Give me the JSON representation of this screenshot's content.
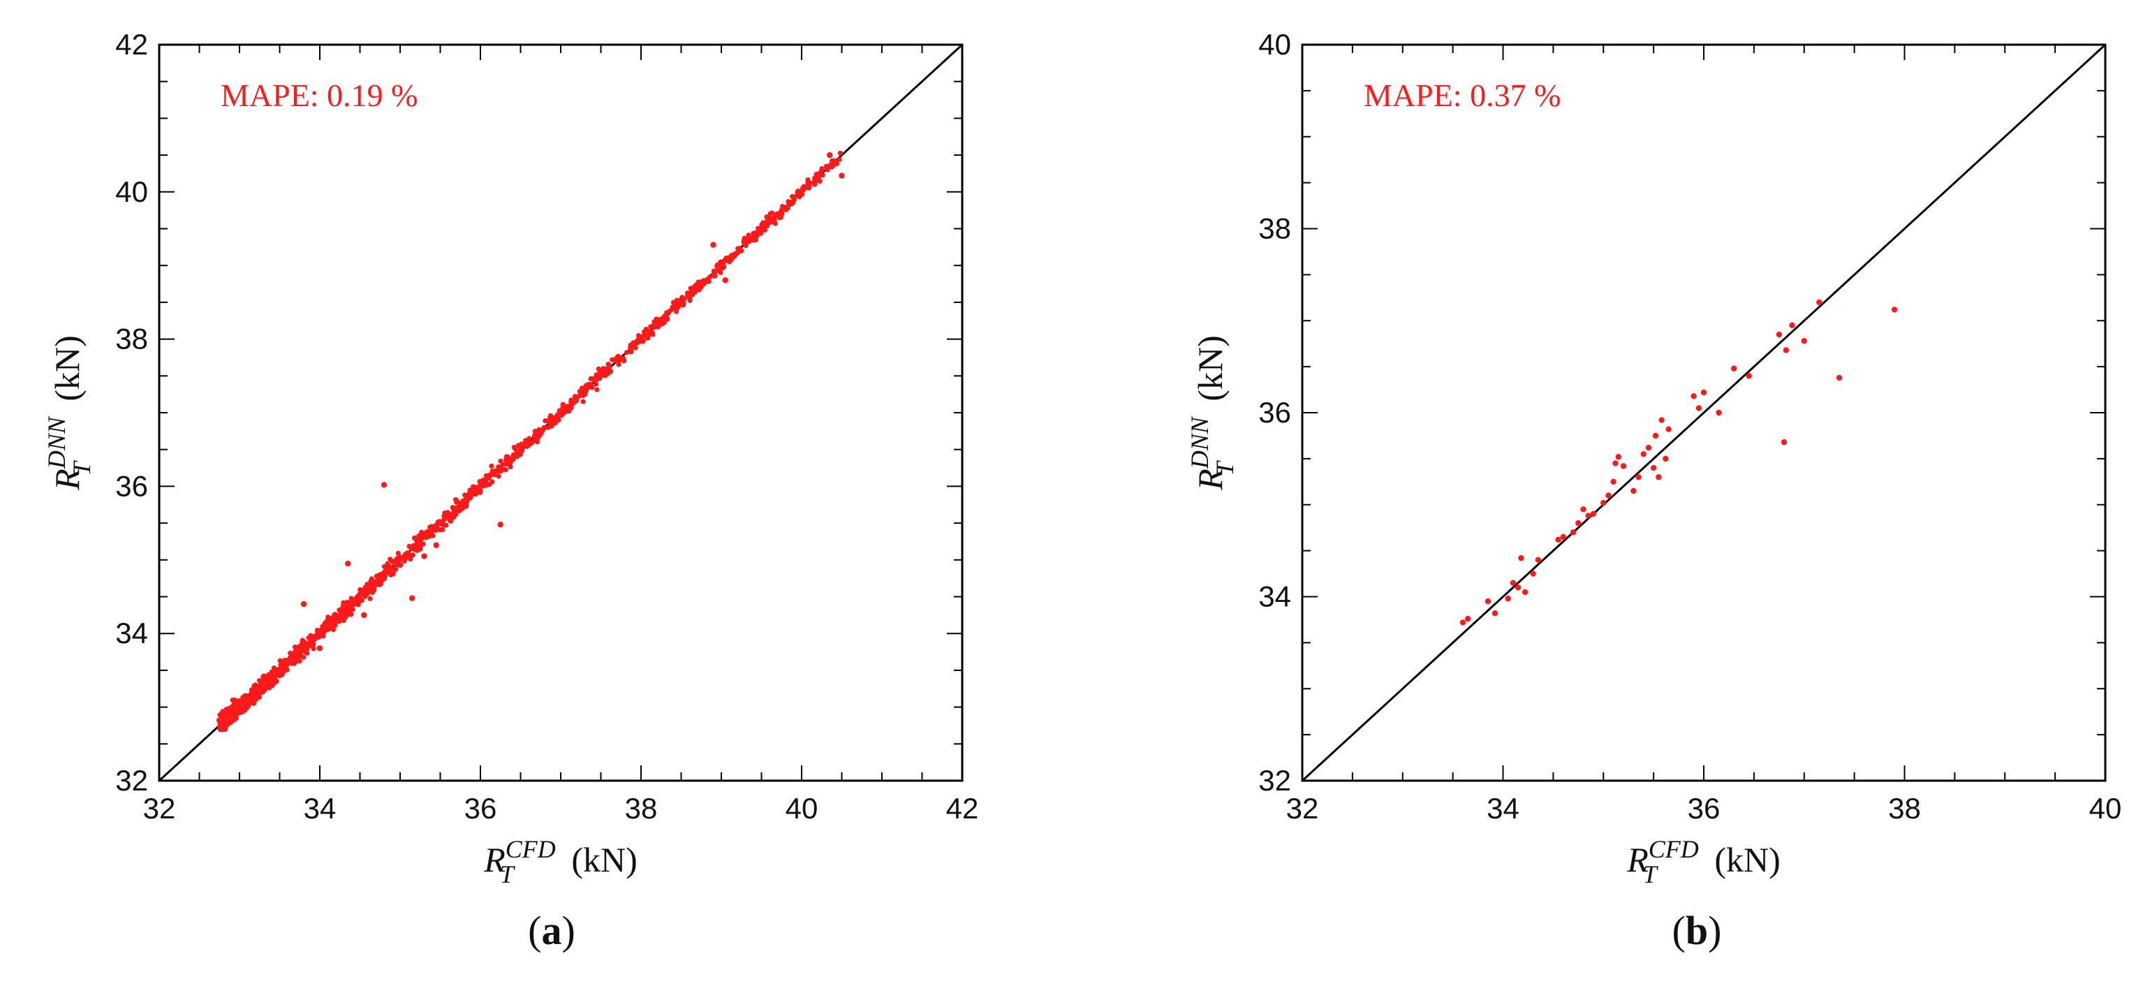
{
  "colors": {
    "points": "#ff1a1a",
    "annotation": "#ff1a1a",
    "axes": "#000000",
    "reference_line": "#000000"
  },
  "chart_data": [
    {
      "type": "scatter",
      "panel_label": "a",
      "annotation": "MAPE: 0.19 %",
      "xlabel": {
        "base": "R",
        "sub": "T",
        "sup": "CFD",
        "unit": "(kN)"
      },
      "ylabel": {
        "base": "R",
        "sub": "T",
        "sup": "DNN",
        "unit": "(kN)"
      },
      "xlim": [
        32,
        42
      ],
      "ylim": [
        32,
        42
      ],
      "xticks": [
        "32",
        "34",
        "36",
        "38",
        "40",
        "42"
      ],
      "yticks": [
        "32",
        "34",
        "36",
        "38",
        "40",
        "42"
      ],
      "grid": false,
      "reference_line": [
        [
          32,
          32
        ],
        [
          42,
          42
        ]
      ],
      "points_note": "dense cloud of ~1500 points along y=x from about 32.8 to 40.5",
      "x_range": [
        32.78,
        40.5
      ],
      "spread": 0.09,
      "points": [
        [
          34.8,
          36.02
        ],
        [
          36.25,
          35.48
        ],
        [
          35.15,
          34.48
        ],
        [
          40.35,
          40.5
        ],
        [
          40.5,
          40.22
        ],
        [
          40.0,
          39.97
        ],
        [
          39.75,
          39.7
        ],
        [
          39.4,
          39.35
        ],
        [
          39.05,
          38.8
        ],
        [
          38.9,
          39.28
        ],
        [
          38.45,
          38.5
        ],
        [
          37.35,
          37.38
        ],
        [
          35.3,
          35.05
        ],
        [
          34.35,
          34.95
        ],
        [
          33.8,
          34.4
        ],
        [
          34.0,
          33.8
        ],
        [
          34.55,
          34.25
        ],
        [
          35.45,
          35.2
        ]
      ]
    },
    {
      "type": "scatter",
      "panel_label": "b",
      "annotation": "MAPE: 0.37 %",
      "xlabel": {
        "base": "R",
        "sub": "T",
        "sup": "CFD",
        "unit": "(kN)"
      },
      "ylabel": {
        "base": "R",
        "sub": "T",
        "sup": "DNN",
        "unit": "(kN)"
      },
      "xlim": [
        32,
        40
      ],
      "ylim": [
        32,
        40
      ],
      "xticks": [
        "32",
        "34",
        "36",
        "38",
        "40"
      ],
      "yticks": [
        "32",
        "34",
        "36",
        "38",
        "40"
      ],
      "grid": false,
      "reference_line": [
        [
          32,
          32
        ],
        [
          40,
          40
        ]
      ],
      "points": [
        [
          33.6,
          33.72
        ],
        [
          33.65,
          33.76
        ],
        [
          33.85,
          33.95
        ],
        [
          33.92,
          33.82
        ],
        [
          34.05,
          33.98
        ],
        [
          34.1,
          34.15
        ],
        [
          34.15,
          34.1
        ],
        [
          34.18,
          34.42
        ],
        [
          34.22,
          34.05
        ],
        [
          34.3,
          34.25
        ],
        [
          34.35,
          34.4
        ],
        [
          34.55,
          34.62
        ],
        [
          34.6,
          34.65
        ],
        [
          34.7,
          34.7
        ],
        [
          34.75,
          34.8
        ],
        [
          34.8,
          34.95
        ],
        [
          34.85,
          34.88
        ],
        [
          34.9,
          34.9
        ],
        [
          35.0,
          35.02
        ],
        [
          35.05,
          35.1
        ],
        [
          35.1,
          35.25
        ],
        [
          35.12,
          35.45
        ],
        [
          35.15,
          35.52
        ],
        [
          35.2,
          35.42
        ],
        [
          35.3,
          35.15
        ],
        [
          35.35,
          35.3
        ],
        [
          35.4,
          35.55
        ],
        [
          35.45,
          35.62
        ],
        [
          35.5,
          35.4
        ],
        [
          35.52,
          35.75
        ],
        [
          35.55,
          35.3
        ],
        [
          35.58,
          35.92
        ],
        [
          35.62,
          35.5
        ],
        [
          35.65,
          35.82
        ],
        [
          35.9,
          36.18
        ],
        [
          35.95,
          36.05
        ],
        [
          36.0,
          36.22
        ],
        [
          36.15,
          36.0
        ],
        [
          36.3,
          36.48
        ],
        [
          36.45,
          36.4
        ],
        [
          36.8,
          35.68
        ],
        [
          36.75,
          36.85
        ],
        [
          36.82,
          36.68
        ],
        [
          36.88,
          36.95
        ],
        [
          37.0,
          36.78
        ],
        [
          37.15,
          37.2
        ],
        [
          37.35,
          36.38
        ],
        [
          37.9,
          37.12
        ]
      ]
    }
  ]
}
